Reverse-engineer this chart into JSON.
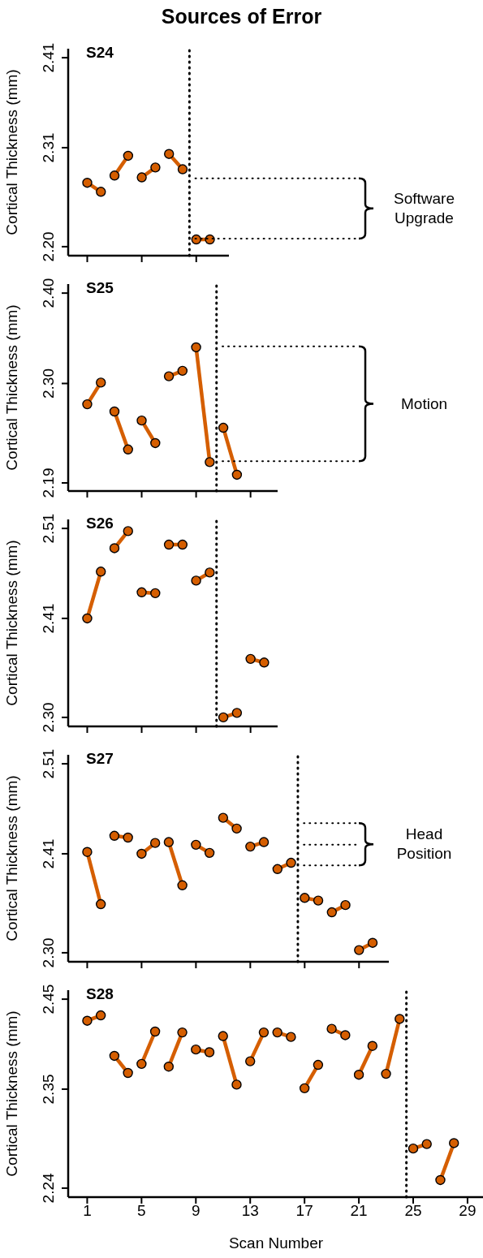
{
  "chart_data": [
    {
      "type": "line",
      "title": "Sources of Error",
      "subtitle": "S24",
      "ylabel": "Cortical Thickness (mm)",
      "xlim": [
        -0.4,
        11.4
      ],
      "xticks": [
        1,
        5,
        9
      ],
      "ylim": [
        2.19,
        2.42
      ],
      "yticks": [
        {
          "value": 2.2,
          "label": "2.20"
        },
        2.31,
        2.41
      ],
      "tick_labels": "y",
      "marker": "circle",
      "line_style": "solid",
      "series": [
        {
          "color": "#d55e00",
          "x": [
            1,
            2
          ],
          "values": [
            2.271,
            2.261
          ]
        },
        {
          "color": "#d55e00",
          "x": [
            3,
            4
          ],
          "values": [
            2.279,
            2.301
          ]
        },
        {
          "color": "#d55e00",
          "x": [
            5,
            6
          ],
          "values": [
            2.277,
            2.288
          ]
        },
        {
          "color": "#d55e00",
          "x": [
            7,
            8
          ],
          "values": [
            2.303,
            2.286
          ]
        },
        {
          "color": "#d55e00",
          "x": [
            9,
            10
          ],
          "values": [
            2.208,
            2.208
          ]
        }
      ],
      "ref_lines": [
        {
          "axis": "x",
          "value": 8.5,
          "line_style": "dotted",
          "color": "#000000"
        },
        {
          "axis": "y",
          "value": 2.276,
          "line_style": "dotted",
          "color": "#000000"
        },
        {
          "axis": "y",
          "value": 2.209,
          "line_style": "dotted",
          "color": "#000000"
        }
      ],
      "annotations": [
        "Software Upgrade"
      ]
    },
    {
      "type": "line",
      "subtitle": "S25",
      "ylabel": "Cortical Thickness (mm)",
      "xlim": [
        -0.4,
        15
      ],
      "xticks": [
        1,
        5,
        9,
        13
      ],
      "ylim": [
        2.181,
        2.41
      ],
      "yticks": [
        {
          "value": 2.19,
          "label": "2.19"
        },
        {
          "value": 2.3,
          "label": "2.30"
        },
        {
          "value": 2.4,
          "label": "2.40"
        }
      ],
      "tick_labels": "y",
      "marker": "circle",
      "line_style": "solid",
      "series": [
        {
          "color": "#d55e00",
          "x": [
            1,
            2
          ],
          "values": [
            2.277,
            2.301
          ]
        },
        {
          "color": "#d55e00",
          "x": [
            3,
            4
          ],
          "values": [
            2.269,
            2.227
          ]
        },
        {
          "color": "#d55e00",
          "x": [
            5,
            6
          ],
          "values": [
            2.259,
            2.234
          ]
        },
        {
          "color": "#d55e00",
          "x": [
            7,
            8
          ],
          "values": [
            2.308,
            2.314
          ]
        },
        {
          "color": "#d55e00",
          "x": [
            9,
            10
          ],
          "values": [
            2.34,
            2.213
          ]
        },
        {
          "color": "#d55e00",
          "x": [
            11,
            12
          ],
          "values": [
            2.251,
            2.199
          ]
        }
      ],
      "ref_lines": [
        {
          "axis": "x",
          "value": 10.5,
          "line_style": "dotted",
          "color": "#000000"
        },
        {
          "axis": "y",
          "value": 2.341,
          "line_style": "dotted",
          "color": "#000000"
        },
        {
          "axis": "y",
          "value": 2.214,
          "line_style": "dotted",
          "color": "#000000"
        }
      ],
      "annotations": [
        "Motion"
      ]
    },
    {
      "type": "line",
      "subtitle": "S26",
      "ylabel": "Cortical Thickness (mm)",
      "xlim": [
        -0.4,
        15
      ],
      "xticks": [
        1,
        5,
        9,
        13
      ],
      "ylim": [
        2.29,
        2.52
      ],
      "yticks": [
        {
          "value": 2.3,
          "label": "2.30"
        },
        2.41,
        2.51
      ],
      "tick_labels": "y",
      "marker": "circle",
      "line_style": "solid",
      "series": [
        {
          "color": "#d55e00",
          "x": [
            1,
            2
          ],
          "values": [
            2.41,
            2.462
          ]
        },
        {
          "color": "#d55e00",
          "x": [
            3,
            4
          ],
          "values": [
            2.488,
            2.507
          ]
        },
        {
          "color": "#d55e00",
          "x": [
            5,
            6
          ],
          "values": [
            2.439,
            2.438
          ]
        },
        {
          "color": "#d55e00",
          "x": [
            7,
            8
          ],
          "values": [
            2.492,
            2.492
          ]
        },
        {
          "color": "#d55e00",
          "x": [
            9,
            10
          ],
          "values": [
            2.452,
            2.461
          ]
        },
        {
          "color": "#d55e00",
          "x": [
            11,
            12
          ],
          "values": [
            2.3,
            2.305
          ]
        },
        {
          "color": "#d55e00",
          "x": [
            13,
            14
          ],
          "values": [
            2.365,
            2.361
          ]
        }
      ],
      "ref_lines": [
        {
          "axis": "x",
          "value": 10.5,
          "line_style": "dotted",
          "color": "#000000"
        }
      ]
    },
    {
      "type": "line",
      "subtitle": "S27",
      "ylabel": "Cortical Thickness (mm)",
      "xlim": [
        -0.4,
        23.2
      ],
      "xticks": [
        1,
        5,
        9,
        13,
        17,
        21
      ],
      "ylim": [
        2.29,
        2.52
      ],
      "yticks": [
        {
          "value": 2.3,
          "label": "2.30"
        },
        2.41,
        2.51
      ],
      "tick_labels": "y",
      "marker": "circle",
      "line_style": "solid",
      "series": [
        {
          "color": "#d55e00",
          "x": [
            1,
            2
          ],
          "values": [
            2.412,
            2.354
          ]
        },
        {
          "color": "#d55e00",
          "x": [
            3,
            4
          ],
          "values": [
            2.43,
            2.428
          ]
        },
        {
          "color": "#d55e00",
          "x": [
            5,
            6
          ],
          "values": [
            2.41,
            2.422
          ]
        },
        {
          "color": "#d55e00",
          "x": [
            7,
            8
          ],
          "values": [
            2.423,
            2.375
          ]
        },
        {
          "color": "#d55e00",
          "x": [
            9,
            10
          ],
          "values": [
            2.42,
            2.411
          ]
        },
        {
          "color": "#d55e00",
          "x": [
            11,
            12
          ],
          "values": [
            2.45,
            2.438
          ]
        },
        {
          "color": "#d55e00",
          "x": [
            13,
            14
          ],
          "values": [
            2.418,
            2.423
          ]
        },
        {
          "color": "#d55e00",
          "x": [
            15,
            16
          ],
          "values": [
            2.393,
            2.4
          ]
        },
        {
          "color": "#d55e00",
          "x": [
            17,
            18
          ],
          "values": [
            2.361,
            2.358
          ]
        },
        {
          "color": "#d55e00",
          "x": [
            19,
            20
          ],
          "values": [
            2.345,
            2.353
          ]
        },
        {
          "color": "#d55e00",
          "x": [
            21,
            22
          ],
          "values": [
            2.303,
            2.311
          ]
        }
      ],
      "ref_lines": [
        {
          "axis": "x",
          "value": 16.5,
          "line_style": "dotted",
          "color": "#000000"
        },
        {
          "axis": "y",
          "value": 2.444,
          "line_style": "dotted",
          "color": "#000000"
        },
        {
          "axis": "y",
          "value": 2.42,
          "line_style": "dotted",
          "color": "#000000"
        },
        {
          "axis": "y",
          "value": 2.397,
          "line_style": "dotted",
          "color": "#000000"
        }
      ],
      "annotations": [
        "Head Position"
      ]
    },
    {
      "type": "line",
      "subtitle": "S28",
      "ylabel": "Cortical Thickness (mm)",
      "xlabel": "Scan Number",
      "xlim": [
        -0.4,
        30.2
      ],
      "xticks": [
        1,
        5,
        9,
        13,
        17,
        21,
        25,
        29
      ],
      "ylim": [
        2.23,
        2.46
      ],
      "yticks": [
        2.24,
        2.35,
        2.45
      ],
      "marker": "circle",
      "line_style": "solid",
      "series": [
        {
          "color": "#d55e00",
          "x": [
            1,
            2
          ],
          "values": [
            2.426,
            2.432
          ]
        },
        {
          "color": "#d55e00",
          "x": [
            3,
            4
          ],
          "values": [
            2.387,
            2.368
          ]
        },
        {
          "color": "#d55e00",
          "x": [
            5,
            6
          ],
          "values": [
            2.378,
            2.414
          ]
        },
        {
          "color": "#d55e00",
          "x": [
            7,
            8
          ],
          "values": [
            2.375,
            2.413
          ]
        },
        {
          "color": "#d55e00",
          "x": [
            9,
            10
          ],
          "values": [
            2.394,
            2.391
          ]
        },
        {
          "color": "#d55e00",
          "x": [
            11,
            12
          ],
          "values": [
            2.409,
            2.355
          ]
        },
        {
          "color": "#d55e00",
          "x": [
            13,
            14
          ],
          "values": [
            2.381,
            2.413
          ]
        },
        {
          "color": "#d55e00",
          "x": [
            15,
            16
          ],
          "values": [
            2.413,
            2.408
          ]
        },
        {
          "color": "#d55e00",
          "x": [
            17,
            18
          ],
          "values": [
            2.351,
            2.377
          ]
        },
        {
          "color": "#d55e00",
          "x": [
            19,
            20
          ],
          "values": [
            2.417,
            2.41
          ]
        },
        {
          "color": "#d55e00",
          "x": [
            21,
            22
          ],
          "values": [
            2.366,
            2.398
          ]
        },
        {
          "color": "#d55e00",
          "x": [
            23,
            24
          ],
          "values": [
            2.367,
            2.428
          ]
        },
        {
          "color": "#d55e00",
          "x": [
            25,
            26
          ],
          "values": [
            2.284,
            2.289
          ]
        },
        {
          "color": "#d55e00",
          "x": [
            27,
            28
          ],
          "values": [
            2.249,
            2.29
          ]
        }
      ],
      "ref_lines": [
        {
          "axis": "x",
          "value": 24.5,
          "line_style": "dotted",
          "color": "#000000"
        }
      ]
    }
  ]
}
